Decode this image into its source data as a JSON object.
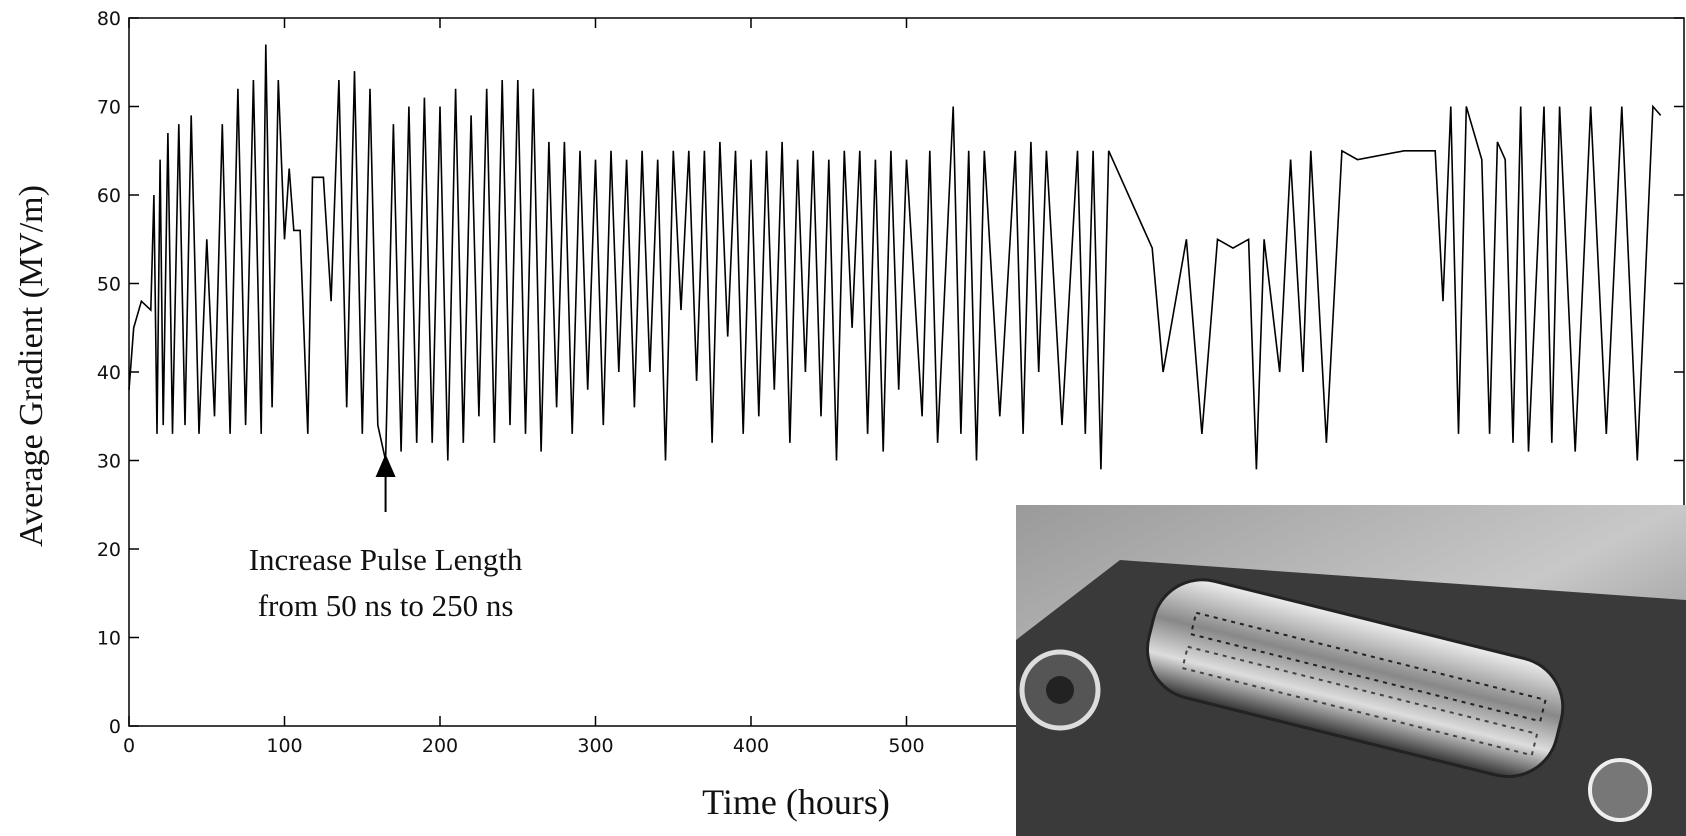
{
  "chart_data": {
    "type": "line",
    "xlabel": "Time (hours)",
    "ylabel": "Average Gradient (MV/m)",
    "annotation": [
      "Increase Pulse Length",
      "from 50 ns to 250 ns"
    ],
    "annotation_x": 165,
    "xlim": [
      0,
      1000
    ],
    "ylim": [
      0,
      80
    ],
    "xticks": [
      0,
      100,
      200,
      300,
      400,
      500
    ],
    "yticks": [
      0,
      10,
      20,
      30,
      40,
      50,
      60,
      70,
      80
    ],
    "series": [
      {
        "color": "#000000",
        "x": [
          0,
          3,
          8,
          14,
          16,
          18,
          20,
          22,
          25,
          28,
          32,
          36,
          40,
          45,
          50,
          55,
          60,
          65,
          70,
          75,
          80,
          85,
          88,
          92,
          96,
          100,
          103,
          106,
          110,
          115,
          118,
          125,
          130,
          135,
          140,
          145,
          150,
          155,
          160,
          165,
          170,
          175,
          180,
          185,
          190,
          195,
          200,
          205,
          210,
          215,
          220,
          225,
          230,
          235,
          240,
          245,
          250,
          255,
          260,
          265,
          270,
          275,
          280,
          285,
          290,
          295,
          300,
          305,
          310,
          315,
          320,
          325,
          330,
          335,
          340,
          345,
          350,
          355,
          360,
          365,
          370,
          375,
          380,
          385,
          390,
          395,
          400,
          405,
          410,
          415,
          420,
          425,
          430,
          435,
          440,
          445,
          450,
          455,
          460,
          465,
          470,
          475,
          480,
          485,
          490,
          495,
          500,
          510,
          515,
          520,
          530,
          535,
          540,
          545,
          550,
          560,
          570,
          575,
          580,
          585,
          590,
          600,
          610,
          615,
          620,
          625,
          630,
          658,
          665,
          680,
          690,
          700,
          710,
          720,
          725,
          730,
          740,
          747,
          755,
          760,
          770,
          780,
          790,
          820,
          840,
          845,
          850,
          855,
          860,
          870,
          875,
          880,
          885,
          890,
          895,
          900,
          910,
          915,
          920,
          930,
          940,
          950,
          960,
          970,
          980,
          985
        ],
        "values": [
          38,
          45,
          48,
          47,
          60,
          33,
          64,
          34,
          67,
          33,
          68,
          34,
          69,
          33,
          55,
          35,
          68,
          33,
          72,
          34,
          73,
          33,
          77,
          36,
          73,
          55,
          63,
          56,
          56,
          33,
          62,
          62,
          48,
          73,
          36,
          74,
          33,
          72,
          34,
          30,
          68,
          31,
          70,
          32,
          71,
          32,
          70,
          30,
          72,
          32,
          69,
          35,
          72,
          32,
          73,
          34,
          73,
          33,
          72,
          31,
          66,
          36,
          66,
          33,
          65,
          38,
          64,
          34,
          65,
          40,
          64,
          36,
          65,
          40,
          64,
          30,
          65,
          47,
          65,
          39,
          65,
          32,
          66,
          44,
          65,
          33,
          64,
          35,
          65,
          38,
          66,
          32,
          64,
          40,
          65,
          35,
          64,
          30,
          65,
          45,
          65,
          33,
          64,
          31,
          65,
          38,
          64,
          35,
          65,
          32,
          70,
          33,
          65,
          30,
          65,
          35,
          65,
          33,
          66,
          40,
          65,
          34,
          65,
          33,
          65,
          29,
          65,
          54,
          40,
          55,
          33,
          55,
          54,
          55,
          29,
          55,
          40,
          64,
          40,
          65,
          32,
          65,
          64,
          65,
          65,
          48,
          70,
          33,
          70,
          64,
          33,
          66,
          64,
          32,
          70,
          31,
          70,
          32,
          70,
          31,
          70,
          33,
          70,
          30,
          70,
          69
        ]
      }
    ]
  }
}
